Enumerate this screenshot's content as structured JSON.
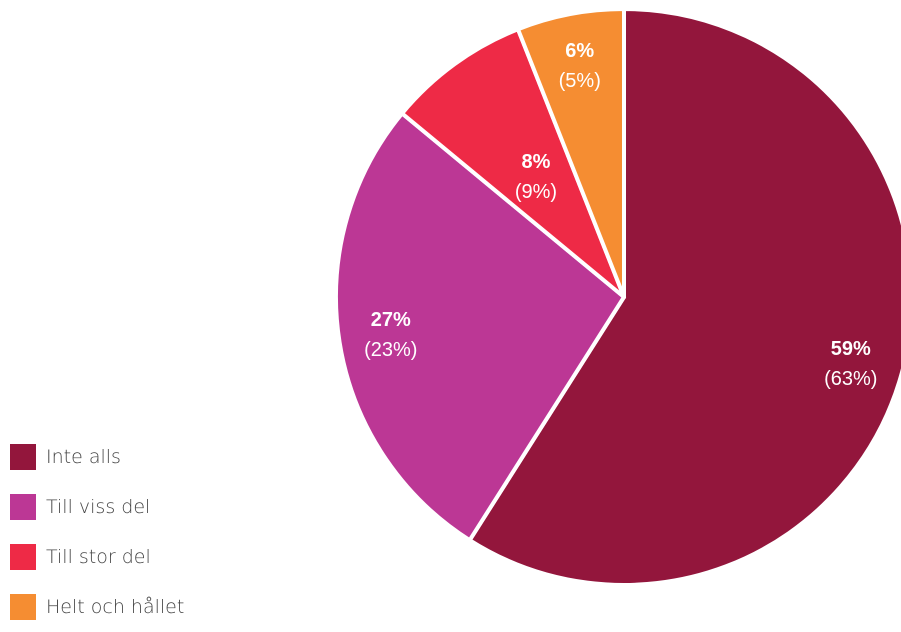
{
  "chart_data": {
    "type": "pie",
    "start_angle_deg": 0,
    "direction": "clockwise",
    "slices": [
      {
        "label": "Inte alls",
        "value": 59,
        "value_label": "59%",
        "previous_label": "(63%)",
        "color": "#93163c",
        "text_color": "#ffffff"
      },
      {
        "label": "Till viss del",
        "value": 27,
        "value_label": "27%",
        "previous_label": "(23%)",
        "color": "#bc3795",
        "text_color": "#ffffff"
      },
      {
        "label": "Till stor del",
        "value": 8,
        "value_label": "8%",
        "previous_label": "(9%)",
        "color": "#ee2a46",
        "text_color": "#ffffff"
      },
      {
        "label": "Helt och hållet",
        "value": 6,
        "value_label": "6%",
        "previous_label": "(5%)",
        "color": "#f58d32",
        "text_color": "#ffffff"
      }
    ],
    "legend": {
      "position": "bottom-left",
      "entries": [
        "Inte alls",
        "Till viss del",
        "Till stor del",
        "Helt och hållet"
      ]
    }
  }
}
